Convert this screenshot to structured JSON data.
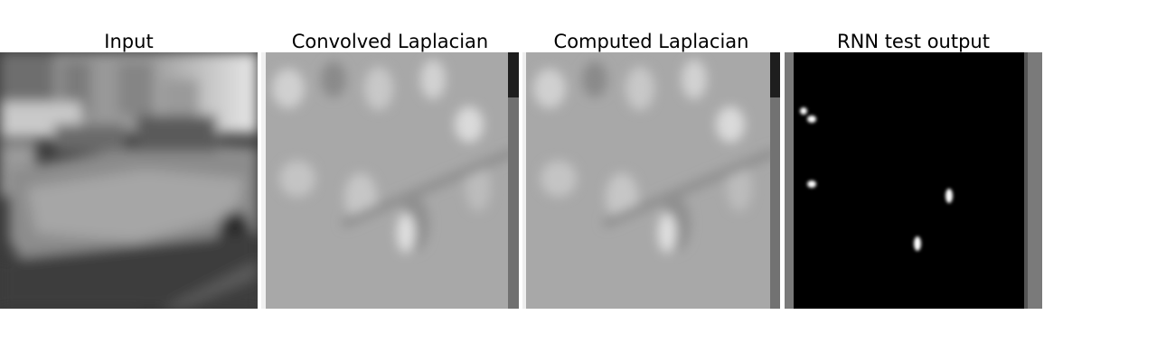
{
  "panels": [
    {
      "id": "input",
      "title": "Input"
    },
    {
      "id": "convolved",
      "title": "Convolved Laplacian"
    },
    {
      "id": "computed",
      "title": "Computed Laplacian"
    },
    {
      "id": "rnn",
      "title": "RNN test output"
    }
  ]
}
